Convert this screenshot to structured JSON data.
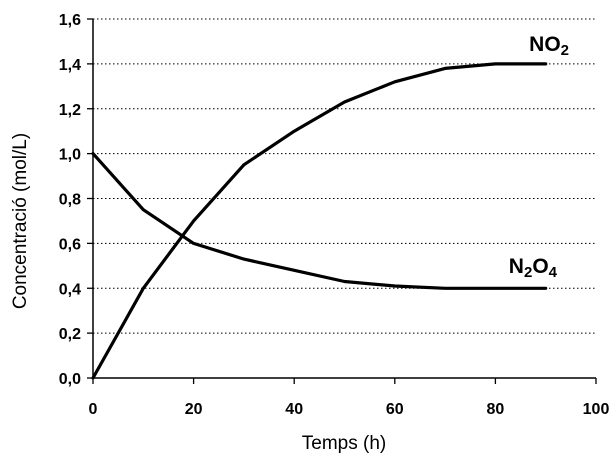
{
  "chart_data": {
    "type": "line",
    "xlabel": "Temps (h)",
    "ylabel": "Concentració (mol/L)",
    "xlim": [
      0,
      100
    ],
    "ylim": [
      0,
      1.6
    ],
    "x_ticks": [
      "0",
      "20",
      "40",
      "60",
      "80",
      "100"
    ],
    "y_ticks": [
      "0,0",
      "0,2",
      "0,4",
      "0,6",
      "0,8",
      "1,0",
      "1,2",
      "1,4",
      "1,6"
    ],
    "grid": "horizontal-dotted",
    "series": [
      {
        "label_parts": [
          {
            "t": "NO"
          },
          {
            "t": "2",
            "sub": true
          }
        ],
        "color": "#000000",
        "x": [
          0,
          10,
          20,
          30,
          40,
          50,
          60,
          70,
          80,
          90
        ],
        "values": [
          0.0,
          0.4,
          0.7,
          0.95,
          1.1,
          1.23,
          1.32,
          1.38,
          1.4,
          1.4
        ]
      },
      {
        "label_parts": [
          {
            "t": "N"
          },
          {
            "t": "2",
            "sub": true
          },
          {
            "t": "O"
          },
          {
            "t": "4",
            "sub": true
          }
        ],
        "color": "#000000",
        "x": [
          0,
          10,
          20,
          30,
          40,
          50,
          60,
          70,
          80,
          90
        ],
        "values": [
          1.0,
          0.75,
          0.6,
          0.53,
          0.48,
          0.43,
          0.41,
          0.4,
          0.4,
          0.4
        ]
      }
    ]
  }
}
